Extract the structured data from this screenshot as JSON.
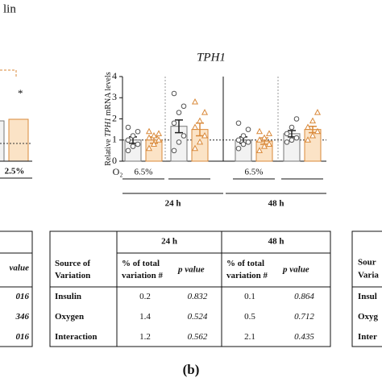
{
  "chart_data": {
    "type": "bar",
    "title": "TPH1",
    "y_label": [
      "Relative ",
      "TPH1",
      " mRNA levels"
    ],
    "x_label": "O₂",
    "categories": [
      "6.5%",
      null,
      "6.5%",
      null
    ],
    "groups": [
      "24 h",
      "48 h"
    ],
    "ylim": [
      0,
      4
    ],
    "yticks": [
      0,
      1,
      2,
      3,
      4
    ],
    "reference_line": 1,
    "series": [
      {
        "color": "#f2f2f2",
        "edge": "#777777",
        "marker": "circle",
        "values": [
          1.0,
          1.65,
          1.0,
          1.3
        ],
        "errors": [
          0.15,
          0.3,
          0.15,
          0.15
        ],
        "points": [
          [
            0.5,
            0.7,
            0.8,
            1.0,
            1.2,
            1.4,
            1.6
          ],
          [
            0.5,
            0.9,
            1.2,
            1.8,
            2.3,
            2.6,
            3.2
          ],
          [
            0.6,
            0.8,
            0.9,
            1.0,
            1.2,
            1.5,
            1.8
          ],
          [
            0.9,
            1.0,
            1.1,
            1.3,
            1.6,
            2.0
          ]
        ]
      },
      {
        "color": "#fbe3c6",
        "edge": "#d9893a",
        "marker": "triangle",
        "values": [
          1.0,
          1.5,
          0.95,
          1.5
        ],
        "errors": [
          0.15,
          0.3,
          0.15,
          0.15
        ],
        "points": [
          [
            0.6,
            0.8,
            1.0,
            1.1,
            1.2,
            1.3,
            1.4
          ],
          [
            0.6,
            0.9,
            1.2,
            1.6,
            1.9,
            2.3,
            2.8
          ],
          [
            0.5,
            0.7,
            0.8,
            1.0,
            1.1,
            1.3,
            1.4
          ],
          [
            1.0,
            1.2,
            1.4,
            1.6,
            1.9,
            2.3
          ]
        ]
      }
    ]
  },
  "table": {
    "groups": [
      "24 h",
      "48 h"
    ],
    "header": [
      [
        "Source of",
        "Variation"
      ],
      [
        "% of total",
        "variation #"
      ],
      [
        "p value"
      ],
      [
        "% of total",
        "variation #"
      ],
      [
        "p value"
      ]
    ],
    "rows": [
      [
        "Insulin",
        "0.2",
        "0.832",
        "0.1",
        "0.864"
      ],
      [
        "Oxygen",
        "1.4",
        "0.524",
        "0.5",
        "0.712"
      ],
      [
        "Interaction",
        "1.2",
        "0.562",
        "2.1",
        "0.435"
      ]
    ]
  },
  "left_fragment": {
    "title": "lin",
    "star": "*",
    "tick": "2.5%",
    "header": "value",
    "cells": [
      "016",
      "346",
      "016"
    ]
  },
  "right_fragment": {
    "header": [
      "Sour",
      "Varia"
    ],
    "cells": [
      "Insul",
      "Oxyg",
      "Inter"
    ]
  },
  "caption": "(b)"
}
